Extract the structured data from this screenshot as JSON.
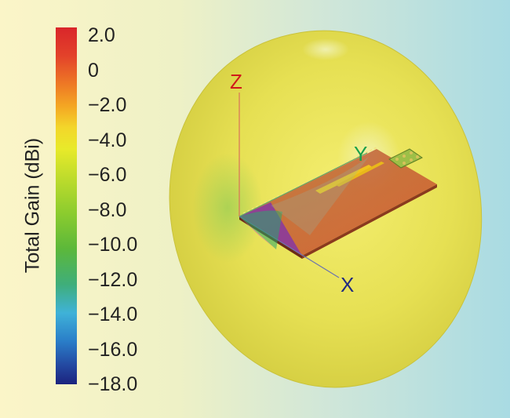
{
  "colorbar": {
    "label": "Total Gain (dBi)",
    "ticks": [
      "2.0",
      "0",
      "−2.0",
      "−4.0",
      "−6.0",
      "−8.0",
      "−10.0",
      "−12.0",
      "−14.0",
      "−16.0",
      "−18.0"
    ]
  },
  "axes": {
    "z_label": "Z",
    "y_label": "Y",
    "x_label": "X",
    "z_color": "#d01a1a",
    "y_color": "#17a04a",
    "x_color": "#202a80"
  }
}
